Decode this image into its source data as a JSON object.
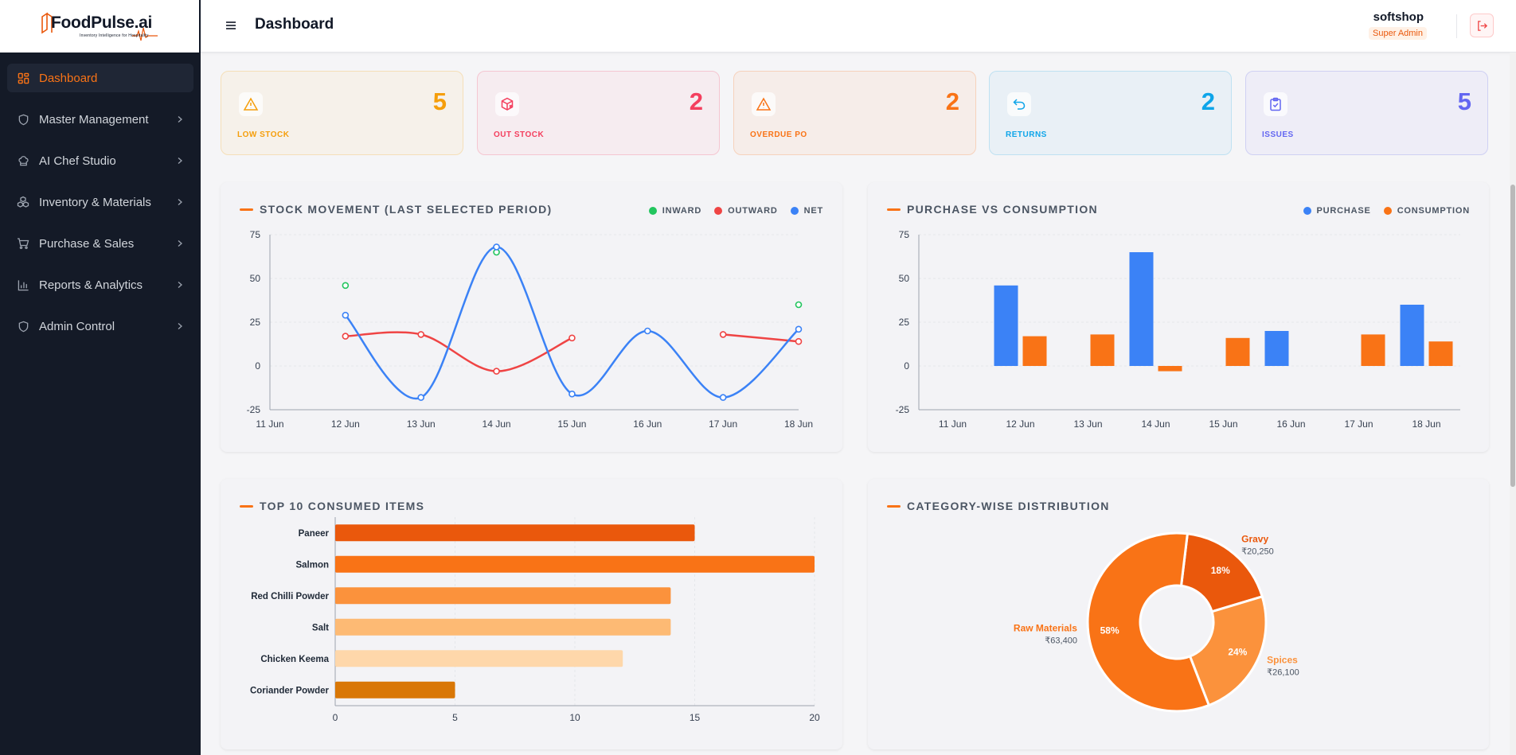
{
  "brand": {
    "name": "FoodPulse.ai",
    "tagline": "Inventory Intelligence for Hospitality"
  },
  "sidebar": {
    "items": [
      {
        "label": "Dashboard",
        "icon": "dashboard-icon",
        "active": true
      },
      {
        "label": "Master Management",
        "icon": "shield-icon"
      },
      {
        "label": "AI Chef Studio",
        "icon": "chef-hat-icon"
      },
      {
        "label": "Inventory & Materials",
        "icon": "boxes-icon"
      },
      {
        "label": "Purchase & Sales",
        "icon": "cart-icon"
      },
      {
        "label": "Reports & Analytics",
        "icon": "bar-chart-icon"
      },
      {
        "label": "Admin Control",
        "icon": "shield-icon"
      }
    ]
  },
  "header": {
    "title": "Dashboard",
    "user_name": "softshop",
    "user_role": "Super Admin"
  },
  "kpis": [
    {
      "label": "LOW STOCK",
      "value": "5",
      "icon": "warning-icon",
      "color": "#f59e0b",
      "bg": "#f6f1ea",
      "border": "#f5dfb8"
    },
    {
      "label": "OUT STOCK",
      "value": "2",
      "icon": "box-x-icon",
      "color": "#f43f5e",
      "bg": "#f6ecf0",
      "border": "#f5c6d1"
    },
    {
      "label": "OVERDUE PO",
      "value": "2",
      "icon": "warning-icon",
      "color": "#f97316",
      "bg": "#f6ede9",
      "border": "#f6d2bc"
    },
    {
      "label": "RETURNS",
      "value": "2",
      "icon": "return-icon",
      "color": "#0ea5e9",
      "bg": "#e9f0f6",
      "border": "#bfe1f2"
    },
    {
      "label": "ISSUES",
      "value": "5",
      "icon": "clipboard-check-icon",
      "color": "#6366f1",
      "bg": "#eeedf7",
      "border": "#cfd0f3"
    }
  ],
  "stock_movement": {
    "title": "STOCK MOVEMENT (LAST SELECTED PERIOD)",
    "legend": [
      {
        "label": "INWARD",
        "color": "#22c55e"
      },
      {
        "label": "OUTWARD",
        "color": "#ef4444"
      },
      {
        "label": "NET",
        "color": "#3b82f6"
      }
    ]
  },
  "purchase_consumption": {
    "title": "PURCHASE VS CONSUMPTION",
    "legend": [
      {
        "label": "PURCHASE",
        "color": "#3b82f6"
      },
      {
        "label": "CONSUMPTION",
        "color": "#f97316"
      }
    ]
  },
  "top_consumed": {
    "title": "TOP 10 CONSUMED ITEMS"
  },
  "category_dist": {
    "title": "CATEGORY-WISE DISTRIBUTION"
  },
  "chart_data": [
    {
      "type": "line",
      "x": [
        "11 Jun",
        "12 Jun",
        "13 Jun",
        "14 Jun",
        "15 Jun",
        "16 Jun",
        "17 Jun",
        "18 Jun"
      ],
      "ylim": [
        -25,
        75
      ],
      "yticks": [
        75,
        50,
        25,
        0,
        -25
      ],
      "series": [
        {
          "name": "INWARD",
          "color": "#22c55e",
          "values": [
            null,
            46,
            null,
            65,
            null,
            null,
            null,
            35
          ]
        },
        {
          "name": "OUTWARD",
          "color": "#ef4444",
          "values": [
            null,
            17,
            18,
            -3,
            16,
            null,
            18,
            14
          ]
        },
        {
          "name": "NET",
          "color": "#3b82f6",
          "values": [
            null,
            29,
            -18,
            68,
            -16,
            20,
            -18,
            21
          ]
        }
      ]
    },
    {
      "type": "bar",
      "categories": [
        "11 Jun",
        "12 Jun",
        "13 Jun",
        "14 Jun",
        "15 Jun",
        "16 Jun",
        "17 Jun",
        "18 Jun"
      ],
      "ylim": [
        -25,
        75
      ],
      "yticks": [
        75,
        50,
        25,
        0,
        -25
      ],
      "series": [
        {
          "name": "PURCHASE",
          "color": "#3b82f6",
          "values": [
            0,
            46,
            0,
            65,
            0,
            20,
            0,
            35
          ]
        },
        {
          "name": "CONSUMPTION",
          "color": "#f97316",
          "values": [
            0,
            17,
            18,
            -3,
            16,
            0,
            18,
            14
          ]
        }
      ]
    },
    {
      "type": "bar",
      "orientation": "horizontal",
      "categories": [
        "Paneer",
        "Salmon",
        "Red Chilli Powder",
        "Salt",
        "Chicken Keema",
        "Coriander Powder"
      ],
      "values": [
        15,
        20,
        14,
        14,
        12,
        5
      ],
      "colors": [
        "#ea580c",
        "#f97316",
        "#fb923c",
        "#fdba74",
        "#fed7aa",
        "#d97706"
      ],
      "xlim": [
        0,
        20
      ],
      "xticks": [
        0,
        5,
        10,
        15,
        20
      ]
    },
    {
      "type": "pie",
      "donut": true,
      "slices": [
        {
          "name": "Raw Materials",
          "value": 63400,
          "value_label": "₹63,400",
          "pct": "58%",
          "color": "#f97316"
        },
        {
          "name": "Gravy",
          "value": 20250,
          "value_label": "₹20,250",
          "pct": "18%",
          "color": "#ea580c"
        },
        {
          "name": "Spices",
          "value": 26100,
          "value_label": "₹26,100",
          "pct": "24%",
          "color": "#fb923c"
        }
      ]
    }
  ]
}
